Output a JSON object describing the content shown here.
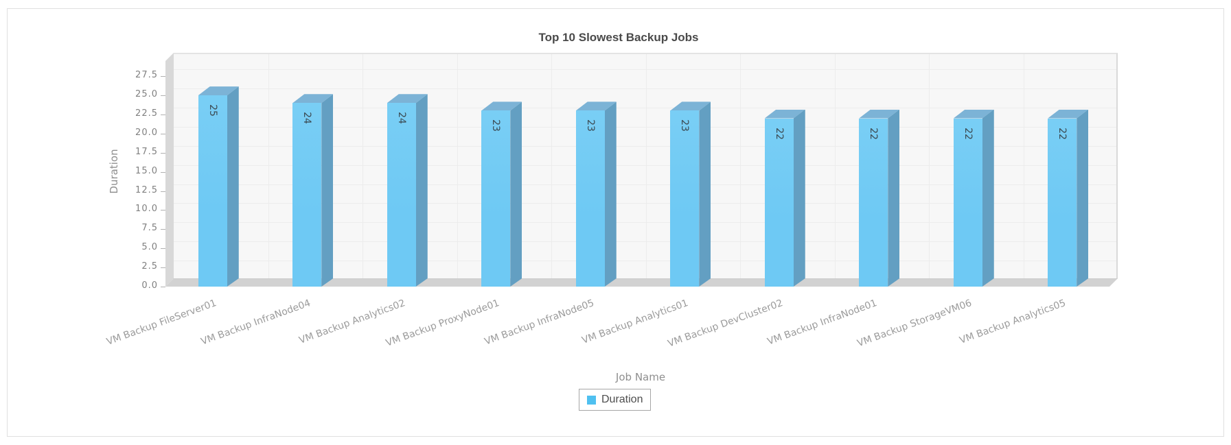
{
  "chart_data": {
    "type": "bar",
    "style": "3d-column",
    "title": "Top 10 Slowest Backup Jobs",
    "xlabel": "Job Name",
    "ylabel": "Duration",
    "categories": [
      "VM Backup FileServer01",
      "VM Backup InfraNode04",
      "VM Backup Analytics02",
      "VM Backup ProxyNode01",
      "VM Backup InfraNode05",
      "VM Backup Analytics01",
      "VM Backup DevCluster02",
      "VM Backup InfraNode01",
      "VM Backup StorageVM06",
      "VM Backup Analytics05"
    ],
    "series": [
      {
        "name": "Duration",
        "values": [
          25,
          24,
          24,
          23,
          23,
          23,
          22,
          22,
          22,
          22
        ]
      }
    ],
    "value_labels_shown": true,
    "ylim": [
      0,
      27.5
    ],
    "ytick_step": 2.5,
    "ytick_labels": [
      "0.0",
      "2.5",
      "5.0",
      "7.5",
      "10.0",
      "12.5",
      "15.0",
      "17.5",
      "20.0",
      "22.5",
      "25.0",
      "27.5"
    ],
    "grid": true,
    "legend": {
      "position": "bottom",
      "entries": [
        {
          "label": "Duration",
          "color": "#4fc0f0"
        }
      ]
    },
    "colors": {
      "bar_front": "#6ec9f4",
      "bar_side": "#639fc2",
      "bar_top": "#7cb3d6",
      "value_label": "#3c4a52",
      "title_text": "#4a4a4a",
      "axis_title_text": "#8f8f8f",
      "tick_text": "#808080",
      "category_text": "#9b9b9b",
      "panel_bg": "#f7f7f7",
      "grid_line": "#ececec",
      "wall": "#d8d8d8",
      "floor": "#d2d2d2",
      "card_border": "#e0e0e0"
    }
  }
}
